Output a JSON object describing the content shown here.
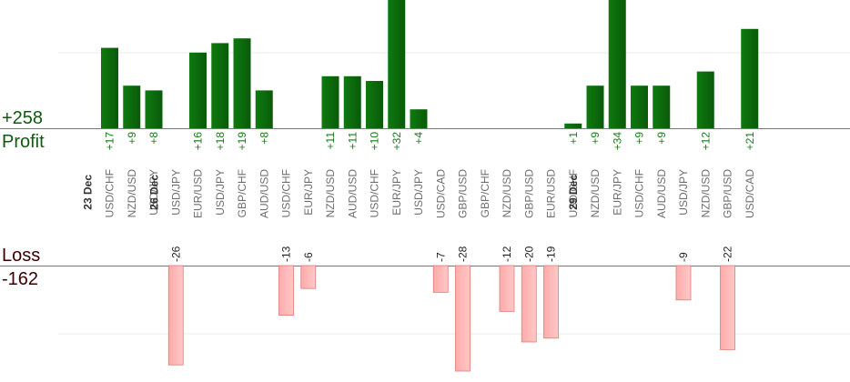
{
  "summary": {
    "profit_total": "+258",
    "profit_label": "Profit",
    "loss_label": "Loss",
    "loss_total": "-162"
  },
  "colors": {
    "profit_bar": "#0a5a0a",
    "profit_text": "#1a7a1a",
    "loss_bar": "#ffaaaa",
    "loss_bar_edge": "#e07a7a",
    "loss_text": "#222222",
    "pair_text": "#6e6e6e",
    "date_text": "#333333",
    "baseline": "#777777",
    "gridline": "#e8e8e8"
  },
  "chart_data": {
    "type": "bar",
    "categories": [
      {
        "date": "23 Dec",
        "pair": "USD/CHF"
      },
      {
        "date": "",
        "pair": "NZD/USD"
      },
      {
        "date": "",
        "pair": "USD/JPY"
      },
      {
        "date": "26 Dec",
        "pair": "USD/JPY"
      },
      {
        "date": "",
        "pair": "EUR/USD"
      },
      {
        "date": "",
        "pair": "USD/JPY"
      },
      {
        "date": "",
        "pair": "GBP/CHF"
      },
      {
        "date": "",
        "pair": "AUD/USD"
      },
      {
        "date": "",
        "pair": "USD/CHF"
      },
      {
        "date": "",
        "pair": "EUR/JPY"
      },
      {
        "date": "",
        "pair": "NZD/USD"
      },
      {
        "date": "",
        "pair": "AUD/USD"
      },
      {
        "date": "",
        "pair": "USD/CHF"
      },
      {
        "date": "",
        "pair": "EUR/JPY"
      },
      {
        "date": "",
        "pair": "USD/JPY"
      },
      {
        "date": "",
        "pair": "USD/CAD"
      },
      {
        "date": "",
        "pair": "GBP/USD"
      },
      {
        "date": "",
        "pair": "GBP/CHF"
      },
      {
        "date": "",
        "pair": "NZD/USD"
      },
      {
        "date": "",
        "pair": "GBP/USD"
      },
      {
        "date": "",
        "pair": "EUR/USD"
      },
      {
        "date": "",
        "pair": "USD/CHF"
      },
      {
        "date": "29 Dec",
        "pair": "NZD/USD"
      },
      {
        "date": "",
        "pair": "EUR/JPY"
      },
      {
        "date": "",
        "pair": "USD/CHF"
      },
      {
        "date": "",
        "pair": "AUD/USD"
      },
      {
        "date": "",
        "pair": "USD/JPY"
      },
      {
        "date": "",
        "pair": "NZD/USD"
      },
      {
        "date": "",
        "pair": "GBP/USD"
      },
      {
        "date": "",
        "pair": "USD/CAD"
      }
    ],
    "profit_labels": [
      "+17",
      "+9",
      "+8",
      "",
      "+16",
      "+18",
      "+19",
      "+8",
      "",
      "",
      "+11",
      "+11",
      "+10",
      "+32",
      "+4",
      "",
      "",
      "",
      "",
      "",
      "",
      "+1",
      "+9",
      "+34",
      "+9",
      "+9",
      "",
      "+12",
      "",
      "+21"
    ],
    "profit_values": [
      17,
      9,
      8,
      0,
      16,
      18,
      19,
      8,
      0,
      0,
      11,
      11,
      10,
      32,
      4,
      0,
      0,
      0,
      0,
      0,
      0,
      1,
      9,
      34,
      9,
      9,
      0,
      12,
      0,
      21
    ],
    "loss_labels": [
      "",
      "",
      "",
      "-26",
      "",
      "",
      "",
      "",
      "-13",
      "-6",
      "",
      "",
      "",
      "",
      "",
      "-7",
      "-28",
      "",
      "-12",
      "-20",
      "-19",
      "",
      "",
      "",
      "",
      "",
      "-9",
      "",
      "-22",
      ""
    ],
    "loss_values": [
      0,
      0,
      0,
      26,
      0,
      0,
      0,
      0,
      13,
      6,
      0,
      0,
      0,
      0,
      0,
      7,
      28,
      0,
      12,
      20,
      19,
      0,
      0,
      0,
      0,
      0,
      9,
      0,
      22,
      0
    ],
    "series": [
      {
        "name": "Profit",
        "total": 258
      },
      {
        "name": "Loss",
        "total": -162
      }
    ],
    "profit_ylim": [
      0,
      16
    ],
    "loss_ylim": [
      0,
      16
    ],
    "grid": true,
    "legend": "left"
  }
}
